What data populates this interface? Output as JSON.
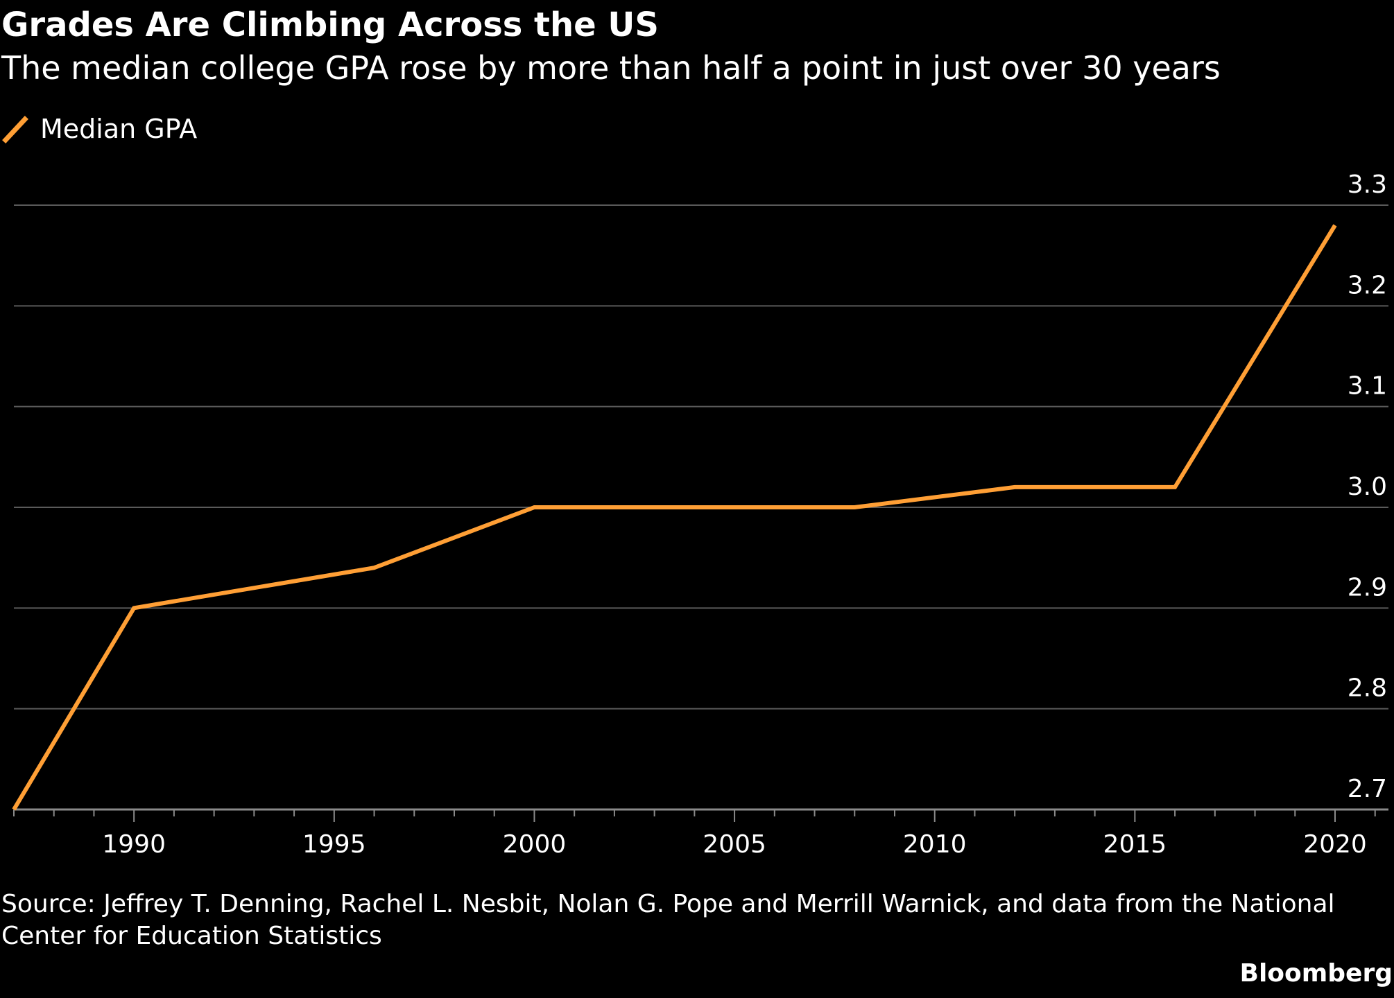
{
  "header": {
    "title": "Grades Are Climbing Across the US",
    "subtitle": "The median college GPA rose by more than half a point in just over 30 years"
  },
  "footer": {
    "source": "Source: Jeffrey T. Denning, Rachel L. Nesbit, Nolan G. Pope and Merrill Warnick, and data from the National Center for Education Statistics",
    "brand": "Bloomberg"
  },
  "colors": {
    "background": "#000000",
    "line": "#ff9f35",
    "grid": "#5a5a5a",
    "text": "#ffffff"
  },
  "chart_data": {
    "type": "line",
    "title": "Grades Are Climbing Across the US",
    "subtitle": "The median college GPA rose by more than half a point in just over 30 years",
    "xlabel": "",
    "ylabel": "",
    "legend_position": "top-left",
    "grid": true,
    "xlim": [
      1987,
      2021.5
    ],
    "ylim": [
      2.7,
      3.3
    ],
    "x_ticks": [
      1990,
      1995,
      2000,
      2005,
      2010,
      2015,
      2020
    ],
    "y_ticks": [
      2.7,
      2.8,
      2.9,
      3.0,
      3.1,
      3.2,
      3.3
    ],
    "y_tick_labels": [
      "2.7",
      "2.8",
      "2.9",
      "3.0",
      "3.1",
      "3.2",
      "3.3"
    ],
    "series": [
      {
        "name": "Median GPA",
        "x": [
          1987,
          1990,
          1996,
          2000,
          2008,
          2012,
          2016,
          2020
        ],
        "y": [
          2.7,
          2.9,
          2.94,
          3.0,
          3.0,
          3.02,
          3.02,
          3.28
        ]
      }
    ]
  }
}
